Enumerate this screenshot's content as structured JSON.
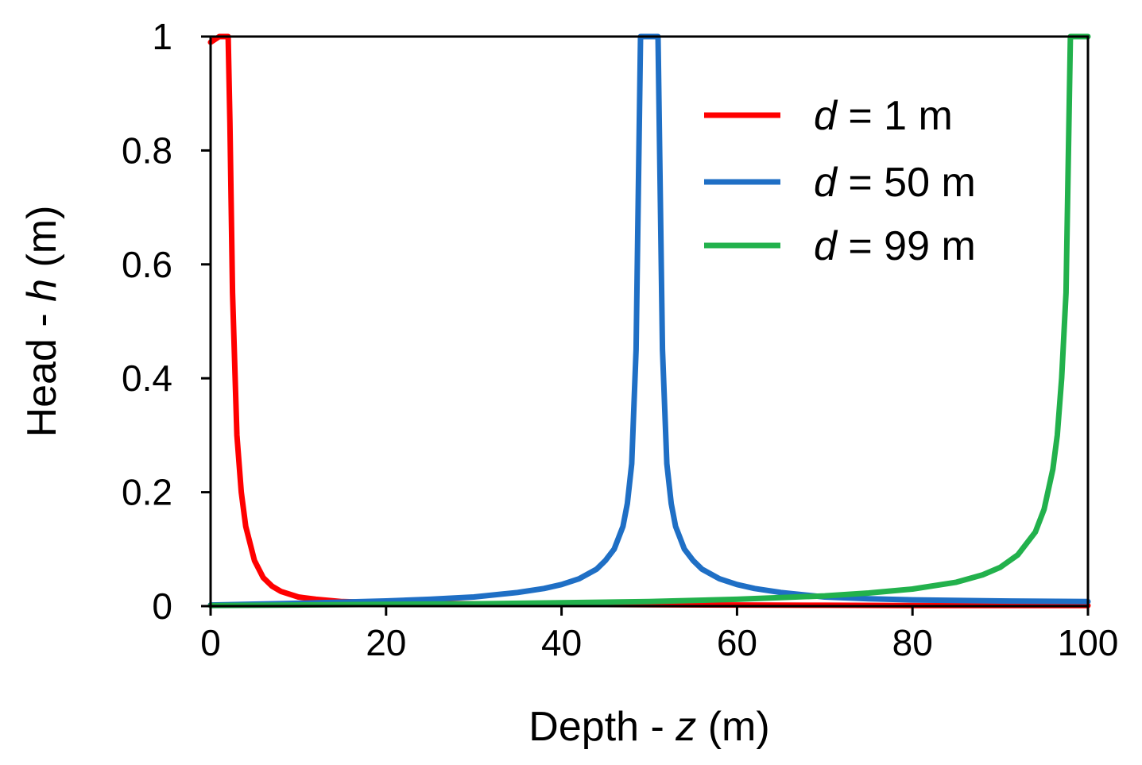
{
  "chart_data": {
    "type": "line",
    "xlabel": {
      "prefix": "Depth - ",
      "var": "z",
      "suffix": " (m)"
    },
    "ylabel": {
      "prefix": "Head - ",
      "var": "h",
      "suffix": " (m)"
    },
    "xlim": [
      0,
      100
    ],
    "ylim": [
      0,
      1
    ],
    "xticks": [
      0,
      20,
      40,
      60,
      80,
      100
    ],
    "yticks": [
      0,
      0.2,
      0.4,
      0.6,
      0.8,
      1
    ],
    "xtick_labels": [
      "0",
      "20",
      "40",
      "60",
      "80",
      "100"
    ],
    "ytick_labels": [
      "0",
      "0.2",
      "0.4",
      "0.6",
      "0.8",
      "1"
    ],
    "grid": false,
    "legend_position": "top-right",
    "series": [
      {
        "name": "d = 1 m",
        "legend": {
          "var": "d",
          "rest": " = 1 m"
        },
        "color": "#ff0000",
        "x": [
          0,
          0.5,
          1,
          1.5,
          2,
          2.2,
          2.5,
          3,
          3.5,
          4,
          5,
          6,
          7,
          8,
          10,
          12,
          15,
          20,
          30,
          40,
          50,
          60,
          70,
          80,
          90,
          100
        ],
        "y": [
          0.99,
          0.995,
          1,
          1,
          1,
          0.85,
          0.55,
          0.3,
          0.2,
          0.14,
          0.08,
          0.05,
          0.035,
          0.026,
          0.016,
          0.012,
          0.008,
          0.006,
          0.004,
          0.003,
          0.0025,
          0.002,
          0.0015,
          0.001,
          0.001,
          0.001
        ]
      },
      {
        "name": "d = 50 m",
        "legend": {
          "var": "d",
          "rest": " = 50 m"
        },
        "color": "#1f6fc5",
        "x": [
          0,
          10,
          20,
          25,
          30,
          35,
          38,
          40,
          42,
          44,
          45,
          46,
          47,
          47.5,
          48,
          48.5,
          49,
          49.5,
          50,
          50.5,
          51,
          51.5,
          52,
          52.5,
          53,
          54,
          55,
          56,
          58,
          60,
          62,
          65,
          70,
          75,
          80,
          90,
          100
        ],
        "y": [
          0.002,
          0.005,
          0.009,
          0.012,
          0.016,
          0.024,
          0.031,
          0.038,
          0.048,
          0.065,
          0.08,
          0.1,
          0.14,
          0.18,
          0.25,
          0.45,
          1,
          1,
          1,
          1,
          1,
          0.45,
          0.25,
          0.18,
          0.14,
          0.1,
          0.08,
          0.065,
          0.048,
          0.038,
          0.031,
          0.024,
          0.016,
          0.013,
          0.011,
          0.009,
          0.008
        ]
      },
      {
        "name": "d = 99 m",
        "legend": {
          "var": "d",
          "rest": " = 99 m"
        },
        "color": "#22b14c",
        "x": [
          0,
          10,
          20,
          30,
          40,
          50,
          60,
          70,
          75,
          80,
          85,
          88,
          90,
          92,
          94,
          95,
          96,
          96.5,
          97,
          97.5,
          98,
          98.5,
          99,
          99.5,
          100
        ],
        "y": [
          0.001,
          0.002,
          0.003,
          0.004,
          0.006,
          0.008,
          0.012,
          0.018,
          0.023,
          0.03,
          0.042,
          0.055,
          0.068,
          0.09,
          0.13,
          0.17,
          0.24,
          0.3,
          0.4,
          0.55,
          1,
          1,
          1,
          1,
          1
        ]
      }
    ]
  }
}
